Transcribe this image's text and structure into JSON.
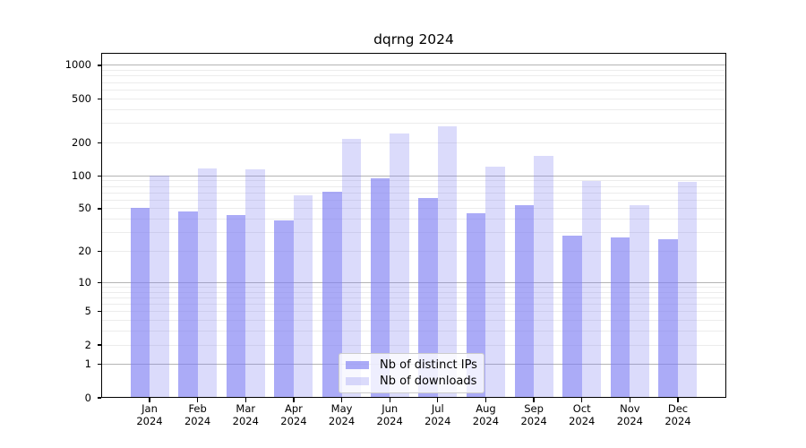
{
  "header": {
    "title": "dqrng 2024"
  },
  "legend": {
    "items": [
      {
        "label": "Nb of distinct IPs",
        "series": "distinct_ips"
      },
      {
        "label": "Nb of downloads",
        "series": "downloads"
      }
    ]
  },
  "axes": {
    "months": [
      "Jan",
      "Feb",
      "Mar",
      "Apr",
      "May",
      "Jun",
      "Jul",
      "Aug",
      "Sep",
      "Oct",
      "Nov",
      "Dec"
    ],
    "year_label": "2024",
    "y_ticks": [
      0,
      1,
      2,
      5,
      10,
      20,
      50,
      100,
      200,
      500,
      1000
    ]
  },
  "colors": {
    "bar_base": "#7e7ef2",
    "ips_alpha": 0.65,
    "downloads_alpha": 0.28,
    "grid_major": "#b4b4b4",
    "grid_minor": "#ececec",
    "spine": "#000000"
  },
  "chart_data": {
    "type": "bar",
    "title": "dqrng 2024",
    "categories": [
      "Jan 2024",
      "Feb 2024",
      "Mar 2024",
      "Apr 2024",
      "May 2024",
      "Jun 2024",
      "Jul 2024",
      "Aug 2024",
      "Sep 2024",
      "Oct 2024",
      "Nov 2024",
      "Dec 2024"
    ],
    "series": [
      {
        "name": "Nb of distinct IPs",
        "values": [
          51,
          47,
          44,
          39,
          71,
          94,
          63,
          45,
          54,
          28,
          27,
          26
        ]
      },
      {
        "name": "Nb of downloads",
        "values": [
          100,
          116,
          114,
          66,
          218,
          243,
          283,
          120,
          151,
          90,
          54,
          88
        ]
      }
    ],
    "xlabel": "",
    "ylabel": "",
    "yscale": "log10(value+1)",
    "ylim": [
      0,
      1300
    ],
    "y_ticks": [
      0,
      1,
      2,
      5,
      10,
      20,
      50,
      100,
      200,
      500,
      1000
    ],
    "grid": "horizontal, minor lines at 2-9 per decade",
    "legend_position": "lower center inside plot"
  }
}
